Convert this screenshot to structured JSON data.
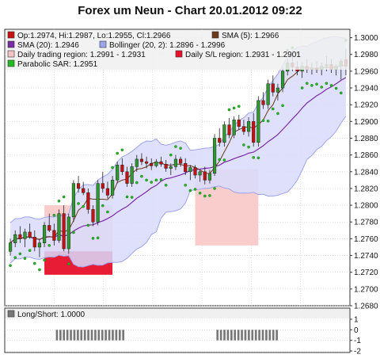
{
  "chart_data": [
    {
      "type": "candlestick",
      "title": "Forex um Neun - Chart 20.01.2012 09:22",
      "ylim": [
        1.268,
        1.301
      ],
      "y_ticks": [
        "1.3000",
        "1.2980",
        "1.2960",
        "1.2940",
        "1.2920",
        "1.2900",
        "1.2880",
        "1.2860",
        "1.2840",
        "1.2820",
        "1.2800",
        "1.2780",
        "1.2760",
        "1.2740",
        "1.2720",
        "1.2700",
        "1.2680"
      ],
      "legend": [
        {
          "label": "Op:1.2974, Hi:1.2987, Lo:1.2955, Cl:1.2966",
          "color": "#c81010"
        },
        {
          "label": "SMA (5): 1.2966",
          "color": "#6b3a1a"
        },
        {
          "label": "SMA (20): 1.2946",
          "color": "#7b2aa8"
        },
        {
          "label": "Bollinger (20, 2): 1.2896 - 1.2996",
          "color": "#9da4ee"
        },
        {
          "label": "Daily trading region: 1.2991 - 1.2931",
          "color": "#f4c4c4"
        },
        {
          "label": "Daily S/L region: 1.2931 - 1.2901",
          "color": "#e8102a"
        },
        {
          "label": "Parabolic SAR: 1.2951",
          "color": "#22bb22"
        }
      ],
      "candles": [
        [
          1.2745,
          1.276,
          1.274,
          1.2755
        ],
        [
          1.2755,
          1.277,
          1.275,
          1.2765
        ],
        [
          1.2765,
          1.2775,
          1.2755,
          1.276
        ],
        [
          1.276,
          1.2772,
          1.275,
          1.2768
        ],
        [
          1.2768,
          1.2778,
          1.276,
          1.2762
        ],
        [
          1.2762,
          1.277,
          1.2745,
          1.275
        ],
        [
          1.275,
          1.276,
          1.2738,
          1.2755
        ],
        [
          1.2755,
          1.278,
          1.275,
          1.2776
        ],
        [
          1.2776,
          1.279,
          1.2768,
          1.277
        ],
        [
          1.277,
          1.2778,
          1.2752,
          1.2758
        ],
        [
          1.2758,
          1.2795,
          1.2755,
          1.279
        ],
        [
          1.279,
          1.28,
          1.2745,
          1.2748
        ],
        [
          1.2748,
          1.279,
          1.2742,
          1.2786
        ],
        [
          1.2786,
          1.283,
          1.278,
          1.2826
        ],
        [
          1.2826,
          1.2835,
          1.2815,
          1.282
        ],
        [
          1.282,
          1.2828,
          1.2812,
          1.2815
        ],
        [
          1.2815,
          1.282,
          1.279,
          1.2795
        ],
        [
          1.2795,
          1.28,
          1.2775,
          1.278
        ],
        [
          1.278,
          1.283,
          1.2776,
          1.2826
        ],
        [
          1.2826,
          1.284,
          1.2815,
          1.282
        ],
        [
          1.282,
          1.2828,
          1.2808,
          1.2812
        ],
        [
          1.2812,
          1.2835,
          1.2808,
          1.283
        ],
        [
          1.283,
          1.2852,
          1.2826,
          1.2848
        ],
        [
          1.2848,
          1.2856,
          1.2836,
          1.284
        ],
        [
          1.284,
          1.2846,
          1.2822,
          1.2826
        ],
        [
          1.2826,
          1.285,
          1.2822,
          1.2846
        ],
        [
          1.2846,
          1.286,
          1.284,
          1.2855
        ],
        [
          1.2855,
          1.2862,
          1.2848,
          1.2852
        ],
        [
          1.2852,
          1.2858,
          1.2844,
          1.285
        ],
        [
          1.285,
          1.2856,
          1.2842,
          1.2847
        ],
        [
          1.2847,
          1.2855,
          1.2845,
          1.2852
        ],
        [
          1.2852,
          1.2858,
          1.2846,
          1.2849
        ],
        [
          1.2849,
          1.2854,
          1.284,
          1.2844
        ],
        [
          1.2844,
          1.285,
          1.2836,
          1.2846
        ],
        [
          1.2846,
          1.286,
          1.2842,
          1.2855
        ],
        [
          1.2855,
          1.2858,
          1.2846,
          1.285
        ],
        [
          1.285,
          1.2856,
          1.2836,
          1.284
        ],
        [
          1.284,
          1.2848,
          1.283,
          1.2845
        ],
        [
          1.2845,
          1.2848,
          1.2832,
          1.2836
        ],
        [
          1.2836,
          1.2842,
          1.2828,
          1.284
        ],
        [
          1.284,
          1.2846,
          1.2825,
          1.283
        ],
        [
          1.283,
          1.2842,
          1.2826,
          1.2838
        ],
        [
          1.2838,
          1.2885,
          1.2835,
          1.288
        ],
        [
          1.288,
          1.2892,
          1.287,
          1.2875
        ],
        [
          1.2875,
          1.29,
          1.287,
          1.2896
        ],
        [
          1.2896,
          1.2904,
          1.288,
          1.2884
        ],
        [
          1.2884,
          1.2906,
          1.288,
          1.2902
        ],
        [
          1.2902,
          1.2908,
          1.289,
          1.2894
        ],
        [
          1.2894,
          1.2902,
          1.2884,
          1.2888
        ],
        [
          1.2888,
          1.2905,
          1.2882,
          1.29
        ],
        [
          1.29,
          1.291,
          1.287,
          1.2875
        ],
        [
          1.2875,
          1.293,
          1.287,
          1.2925
        ],
        [
          1.2925,
          1.2935,
          1.2915,
          1.292
        ],
        [
          1.292,
          1.295,
          1.2915,
          1.2945
        ],
        [
          1.2945,
          1.2955,
          1.293,
          1.2935
        ],
        [
          1.2935,
          1.2945,
          1.2925,
          1.294
        ],
        [
          1.294,
          1.2965,
          1.2935,
          1.296
        ],
        [
          1.296,
          1.2975,
          1.2955,
          1.297
        ],
        [
          1.297,
          1.2978,
          1.296,
          1.2965
        ],
        [
          1.2965,
          1.2972,
          1.2955,
          1.296
        ],
        [
          1.296,
          1.297,
          1.2952,
          1.2966
        ],
        [
          1.2966,
          1.2974,
          1.2958,
          1.2962
        ],
        [
          1.2962,
          1.297,
          1.2956,
          1.2964
        ],
        [
          1.2964,
          1.2972,
          1.2958,
          1.2962
        ],
        [
          1.2962,
          1.297,
          1.2955,
          1.2966
        ],
        [
          1.2966,
          1.2978,
          1.296,
          1.2968
        ],
        [
          1.2968,
          1.2975,
          1.2958,
          1.2962
        ],
        [
          1.2962,
          1.2968,
          1.2955,
          1.2966
        ],
        [
          1.2966,
          1.2975,
          1.295,
          1.2972
        ],
        [
          1.2974,
          1.2987,
          1.2955,
          1.2966
        ]
      ]
    },
    {
      "type": "bar",
      "title": "Long/Short: 1.0000",
      "ylim": [
        -2,
        1
      ],
      "y_ticks": [
        "1",
        "0",
        "-1",
        "-2"
      ],
      "color": "#777777",
      "values": [
        0,
        0,
        0,
        0,
        0,
        0,
        0,
        0,
        0,
        0,
        0,
        0,
        0,
        0,
        -1,
        -1,
        -1,
        -1,
        -1,
        -1,
        -1,
        -1,
        -1,
        -1,
        -1,
        -1,
        -1,
        -1,
        -1,
        -1,
        -1,
        -1,
        -1,
        -1,
        0,
        0,
        0,
        0,
        0,
        0,
        0,
        0,
        0,
        0,
        0,
        0,
        0,
        0,
        0,
        0,
        0,
        0,
        0,
        0,
        0,
        0,
        0,
        0,
        0,
        0,
        -1,
        -1,
        -1,
        -1,
        -1,
        -1,
        -1,
        -1,
        -1,
        -1,
        -1,
        -1,
        -1,
        -1,
        -1,
        -1,
        -1,
        -1,
        0,
        0,
        0,
        0,
        0,
        0,
        0,
        0,
        0,
        0,
        0,
        0,
        0,
        0,
        0,
        0,
        0,
        0,
        0,
        0
      ]
    }
  ]
}
